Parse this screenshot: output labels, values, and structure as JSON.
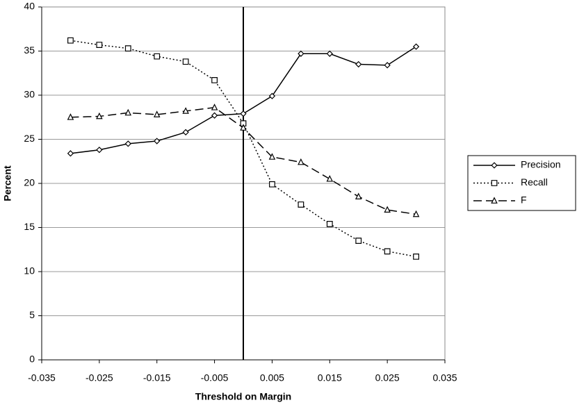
{
  "chart_data": {
    "type": "line",
    "x_label": "Threshold on Margin",
    "y_label": "Percent",
    "x": [
      -0.03,
      -0.025,
      -0.02,
      -0.015,
      -0.01,
      -0.005,
      0,
      0.005,
      0.01,
      0.015,
      0.02,
      0.025,
      0.03
    ],
    "series": [
      {
        "name": "Precision",
        "color": "#000000",
        "marker": "diamond",
        "dash": "solid",
        "values": [
          23.4,
          23.8,
          24.5,
          24.8,
          25.8,
          27.7,
          27.9,
          29.9,
          34.7,
          34.7,
          33.5,
          33.4,
          35.5
        ]
      },
      {
        "name": "Recall",
        "color": "#000000",
        "marker": "square",
        "dash": "dotted",
        "values": [
          36.2,
          35.7,
          35.3,
          34.4,
          33.8,
          31.7,
          26.8,
          19.9,
          17.6,
          15.4,
          13.5,
          12.3,
          11.7
        ]
      },
      {
        "name": "F",
        "color": "#000000",
        "marker": "triangle",
        "dash": "dashed",
        "values": [
          27.5,
          27.6,
          28.0,
          27.8,
          28.2,
          28.6,
          26.3,
          23.0,
          22.4,
          20.5,
          18.5,
          17.0,
          16.5
        ]
      }
    ],
    "vline": 0,
    "xlim": [
      -0.035,
      0.035
    ],
    "xticks": [
      -0.035,
      -0.025,
      -0.015,
      -0.005,
      0.005,
      0.015,
      0.025,
      0.035
    ],
    "ylim": [
      0,
      40
    ],
    "yticks": [
      0,
      5,
      10,
      15,
      20,
      25,
      30,
      35,
      40
    ],
    "grid": true,
    "legend": "right"
  }
}
